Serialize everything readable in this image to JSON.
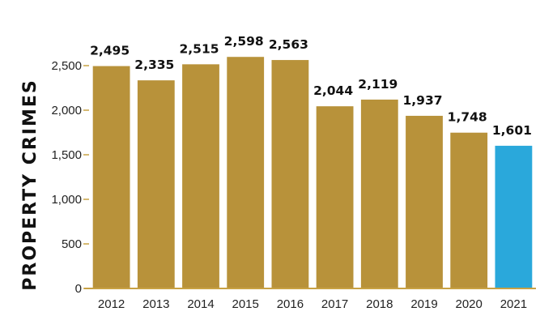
{
  "chart_data": {
    "type": "bar",
    "title": "",
    "xlabel": "",
    "ylabel": "PROPERTY CRIMES",
    "categories": [
      "2012",
      "2013",
      "2014",
      "2015",
      "2016",
      "2017",
      "2018",
      "2019",
      "2020",
      "2021"
    ],
    "values": [
      2495,
      2335,
      2515,
      2598,
      2563,
      2044,
      2119,
      1937,
      1748,
      1601
    ],
    "value_labels": [
      "2,495",
      "2,335",
      "2,515",
      "2,598",
      "2,563",
      "2,044",
      "2,119",
      "1,937",
      "1,748",
      "1,601"
    ],
    "yticks": [
      0,
      500,
      1000,
      1500,
      2000,
      2500
    ],
    "ytick_labels": [
      "0",
      "500",
      "1,000",
      "1,500",
      "2,000",
      "2,500"
    ],
    "ylim": [
      0,
      2600
    ],
    "grid": false,
    "legend": "none",
    "colors": {
      "bar": "#b8923a",
      "highlight": "#2aa8db",
      "axis": "#c9a244",
      "text": "#111111"
    },
    "highlight_index": 9
  }
}
